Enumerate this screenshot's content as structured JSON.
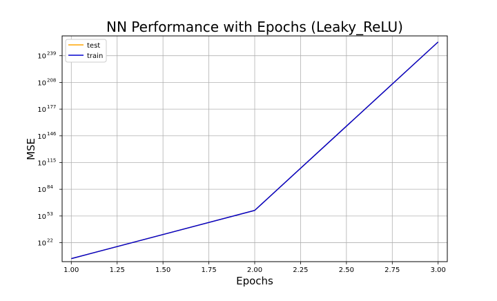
{
  "chart_data": {
    "type": "line",
    "title": "NN Performance with Epochs (Leaky_ReLU)",
    "xlabel": "Epochs",
    "ylabel": "MSE",
    "x": [
      1.0,
      2.0,
      3.0
    ],
    "series": [
      {
        "name": "test",
        "color": "#FFA500",
        "values": [
          3160.0,
          3.16e+59,
          1e+255
        ]
      },
      {
        "name": "train",
        "color": "#0000CD",
        "values": [
          3160.0,
          3.16e+59,
          1e+255
        ]
      }
    ],
    "xlim": [
      0.95,
      3.05
    ],
    "ylim": [
      1.0,
      1e+262
    ],
    "yscale": "log",
    "xticks": [
      1.0,
      1.25,
      1.5,
      1.75,
      2.0,
      2.25,
      2.5,
      2.75,
      3.0
    ],
    "xtick_labels": [
      "1.00",
      "1.25",
      "1.50",
      "1.75",
      "2.00",
      "2.25",
      "2.50",
      "2.75",
      "3.00"
    ],
    "ytick_exponents": [
      22,
      53,
      84,
      115,
      146,
      177,
      208,
      239
    ],
    "ytick_base": "10",
    "grid": true,
    "legend_position": "top-left"
  }
}
